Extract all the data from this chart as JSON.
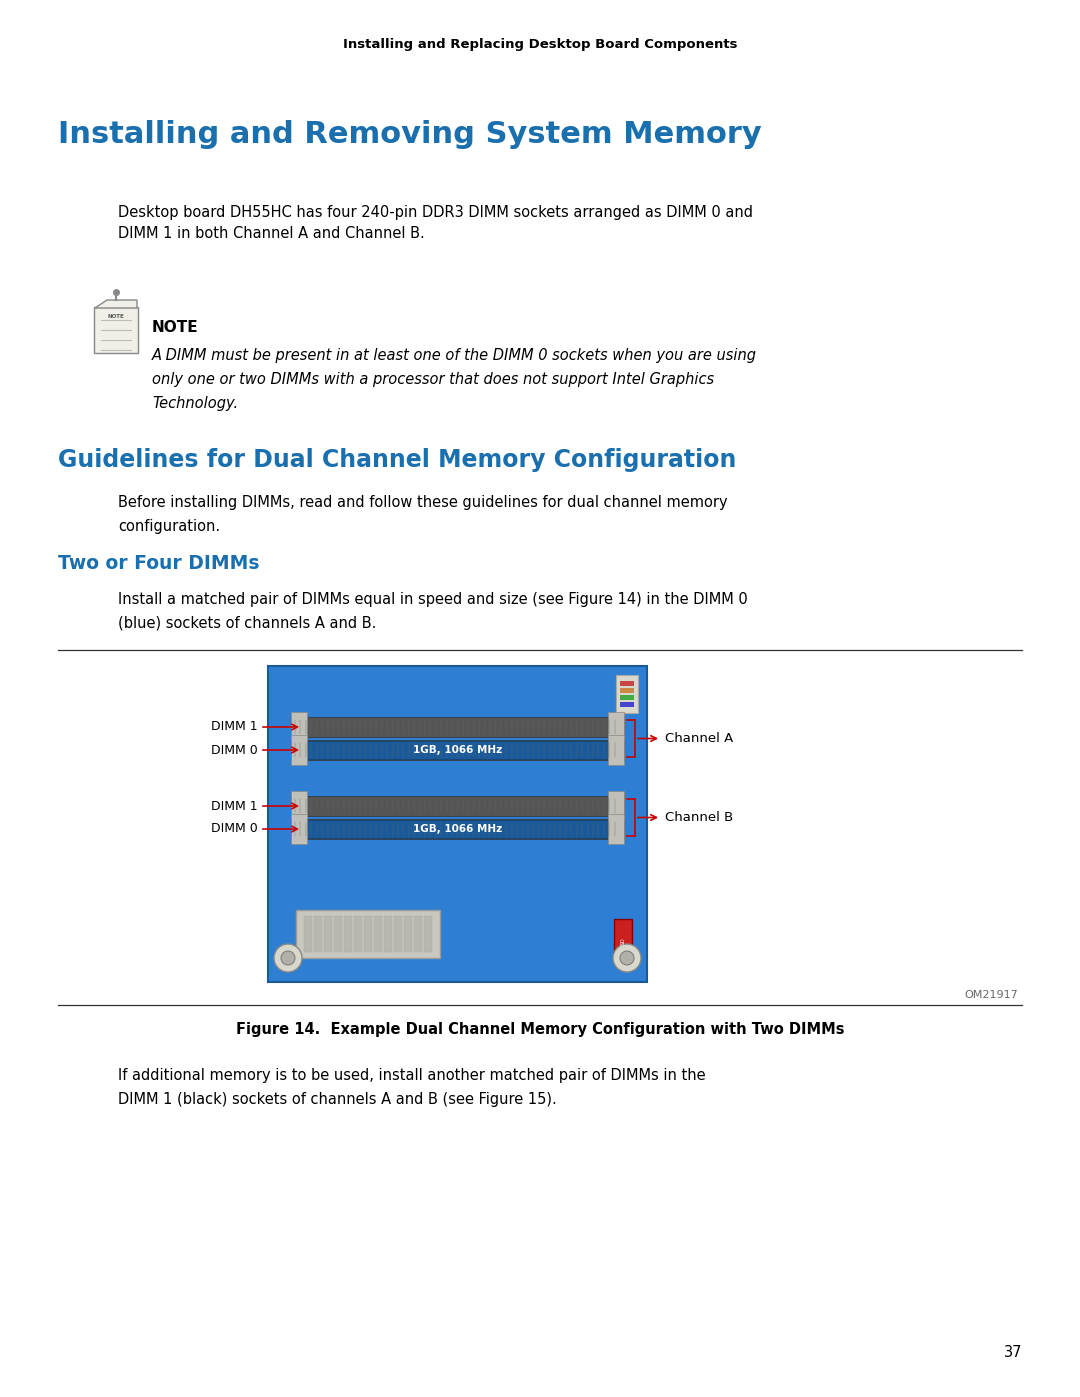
{
  "page_header": "Installing and Replacing Desktop Board Components",
  "main_title": "Installing and Removing System Memory",
  "main_title_color": "#1a6faf",
  "body_text_color": "#000000",
  "background_color": "#ffffff",
  "para1": "Desktop board DH55HC has four 240-pin DDR3 DIMM sockets arranged as DIMM 0 and\nDIMM 1 in both Channel A and Channel B.",
  "note_label": "NOTE",
  "note_italic_line1": "A DIMM must be present in at least one of the DIMM 0 sockets when you are using",
  "note_italic_line2": "only one or two DIMMs with a processor that does not support Intel Graphics",
  "note_italic_line3": "Technology.",
  "section2_title": "Guidelines for Dual Channel Memory Configuration",
  "section2_color": "#1a6faf",
  "para2_line1": "Before installing DIMMs, read and follow these guidelines for dual channel memory",
  "para2_line2": "configuration.",
  "subsection_title": "Two or Four DIMMs",
  "subsection_color": "#1a6faf",
  "para3_line1": "Install a matched pair of DIMMs equal in speed and size (see Figure 14) in the DIMM 0",
  "para3_line2": "(blue) sockets of channels A and B.",
  "figure_caption": "Figure 14.  Example Dual Channel Memory Configuration with Two DIMMs",
  "figure_watermark": "OM21917",
  "para4_line1": "If additional memory is to be used, install another matched pair of DIMMs in the",
  "para4_line2": "DIMM 1 (black) sockets of channels A and B (see Figure 15).",
  "page_number": "37",
  "board_color": "#2e7fd4",
  "red_arrow_color": "#cc0000"
}
